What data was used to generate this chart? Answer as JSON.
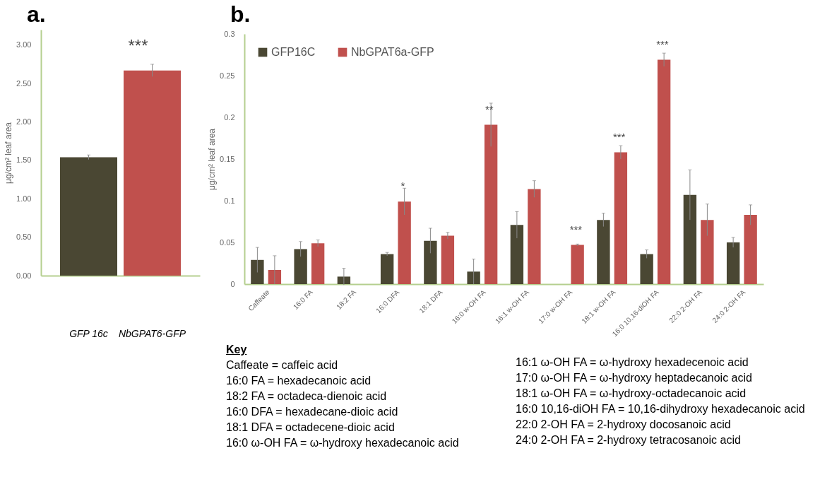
{
  "chart_data": [
    {
      "type": "bar",
      "title": "a.",
      "ylabel": "μg/cm² leaf area",
      "categories": [
        "GFP 16c",
        "NbGPAT6-GFP"
      ],
      "values": [
        1.54,
        2.67
      ],
      "colors": [
        "#4a4733",
        "#c0504d"
      ],
      "errors": [
        0.03,
        0.08
      ],
      "ylim": [
        0,
        3.2
      ],
      "yticks": [
        {
          "value": 0,
          "label": "0.00"
        },
        {
          "value": 0.5,
          "label": "0.50"
        },
        {
          "value": 1,
          "label": "1.00"
        },
        {
          "value": 1.5,
          "label": "1.50"
        },
        {
          "value": 2,
          "label": "2.00"
        },
        {
          "value": 2.5,
          "label": "2.50"
        },
        {
          "value": 3,
          "label": "3.00"
        }
      ],
      "annotations": [
        {
          "text": "***",
          "x": "NbGPAT6-GFP",
          "y": 2.67
        }
      ],
      "grid": false,
      "legend": false
    },
    {
      "type": "bar",
      "title": "b.",
      "ylabel": "μg/cm² leaf area",
      "categories": [
        "Caffeate",
        "16:0 FA",
        "18:2 FA",
        "16:0 DFA",
        "18:1 DFA",
        "16:0 w-OH FA",
        "16:1 w-OH FA",
        "17:0 w-OH FA",
        "18:1 w-OH FA",
        "16:0 10,16-diOH FA",
        "22:0 2-OH FA",
        "24:0 2-OH FA"
      ],
      "series": [
        {
          "name": "GFP16C",
          "color": "#4a4733",
          "values": [
            0.029,
            0.042,
            0.009,
            0.036,
            0.052,
            0.015,
            0.071,
            null,
            0.077,
            0.036,
            0.107,
            0.05
          ],
          "errors": [
            0.015,
            0.009,
            0.01,
            0.002,
            0.015,
            0.015,
            0.016,
            null,
            0.008,
            0.005,
            0.03,
            0.006
          ]
        },
        {
          "name": "NbGPAT6a-GFP",
          "color": "#c0504d",
          "values": [
            0.017,
            0.049,
            null,
            0.099,
            0.058,
            0.191,
            0.114,
            0.047,
            0.158,
            0.269,
            0.077,
            0.083
          ],
          "errors": [
            0.017,
            0.004,
            null,
            0.016,
            0.004,
            0.026,
            0.01,
            0.001,
            0.008,
            0.008,
            0.019,
            0.012
          ]
        }
      ],
      "ylim": [
        0,
        0.3
      ],
      "yticks": [
        {
          "value": 0,
          "label": "0"
        },
        {
          "value": 0.05,
          "label": "0.05"
        },
        {
          "value": 0.1,
          "label": "0.1"
        },
        {
          "value": 0.15,
          "label": "0.15"
        },
        {
          "value": 0.2,
          "label": "0.2"
        },
        {
          "value": 0.25,
          "label": "0.25"
        },
        {
          "value": 0.3,
          "label": "0.3"
        }
      ],
      "grid": false,
      "legend": "top left",
      "annotations": [
        {
          "text": "*",
          "x": "16:0 DFA",
          "y": 0.099
        },
        {
          "text": "**",
          "x": "16:0 w-OH FA",
          "y": 0.191
        },
        {
          "text": "***",
          "x": "17:0 w-OH FA",
          "y": 0.047
        },
        {
          "text": "***",
          "x": "18:1 w-OH FA",
          "y": 0.158
        },
        {
          "text": "***",
          "x": "16:0 10,16-diOH FA",
          "y": 0.269
        },
        "Key",
        "Caffeate = caffeic acid",
        "16:0 FA = hexadecanoic acid",
        "18:2 FA = octadeca-dienoic acid",
        "16:0 DFA = hexadecane-dioic acid",
        "18:1 DFA = octadecene-dioic acid",
        "16:0 ω-OH FA = ω-hydroxy hexadecanoic acid",
        "16:1 ω-OH FA = ω-hydroxy hexadecenoic acid",
        "17:0 ω-OH FA = ω-hydroxy heptadecanoic acid",
        "18:1 ω-OH FA = ω-hydroxy-octadecanoic acid",
        "16:0 10,16-diOH FA = 10,16-dihydroxy hexadecanoic acid",
        "22:0 2-OH FA = 2-hydroxy docosanoic acid",
        "24:0 2-OH FA = 2-hydroxy tetracosanoic acid"
      ]
    }
  ]
}
